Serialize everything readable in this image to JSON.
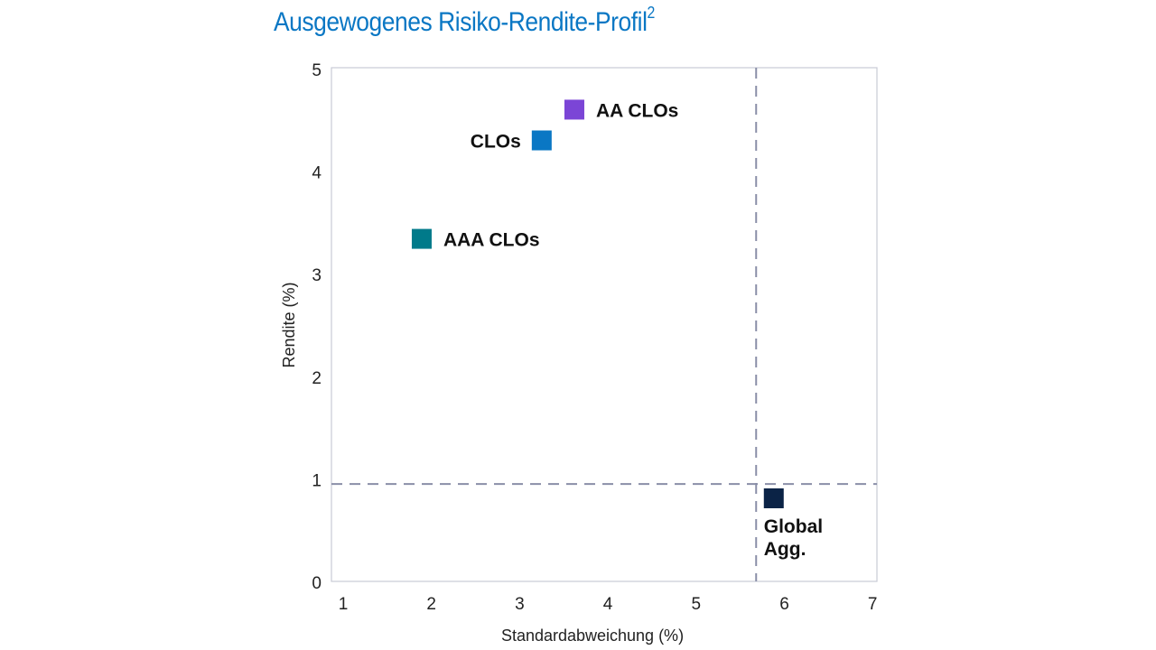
{
  "chart_data": {
    "type": "scatter",
    "title": "Ausgewogenes Risiko-Rendite-Profil",
    "title_superscript": "2",
    "xlabel": "Standardabweichung (%)",
    "ylabel": "Rendite (%)",
    "xlim": [
      1,
      7
    ],
    "ylim": [
      0,
      5
    ],
    "xticks": [
      "1",
      "2",
      "3",
      "4",
      "5",
      "6",
      "7"
    ],
    "yticks": [
      "0",
      "1",
      "2",
      "3",
      "4",
      "5"
    ],
    "grid": false,
    "points": [
      {
        "name": "AA CLOs",
        "x": 3.62,
        "y": 4.6,
        "color": "#7b45d6",
        "label_pos": "right"
      },
      {
        "name": "CLOs",
        "x": 3.25,
        "y": 4.3,
        "color": "#0a77c4",
        "label_pos": "left"
      },
      {
        "name": "AAA CLOs",
        "x": 1.89,
        "y": 3.34,
        "color": "#007a8a",
        "label_pos": "right"
      },
      {
        "name": "Global Agg.",
        "label_lines": [
          "Global",
          "Agg."
        ],
        "x": 5.88,
        "y": 0.81,
        "color": "#0b2346",
        "label_pos": "below"
      }
    ],
    "reference_lines": {
      "vertical_x": 5.68,
      "horizontal_y": 0.95,
      "color": "#8a8fa8"
    }
  }
}
